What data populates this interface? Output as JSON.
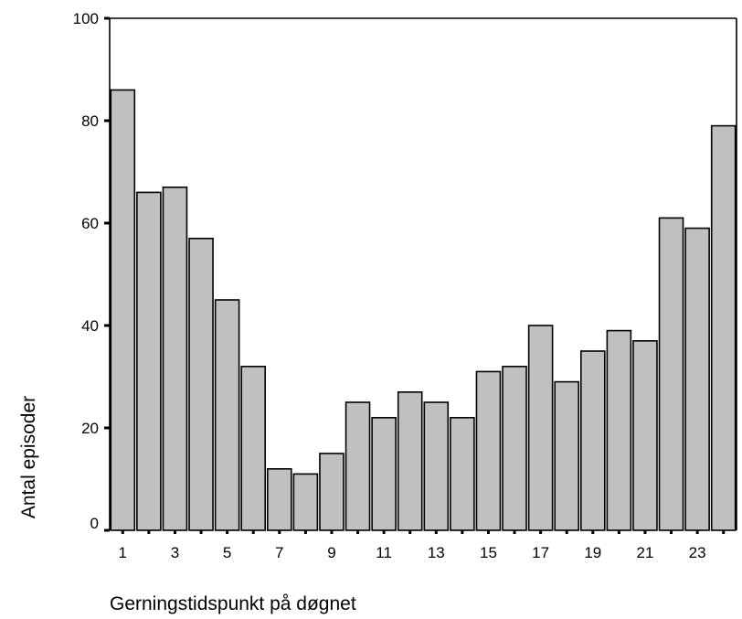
{
  "chart_data": {
    "type": "bar",
    "categories": [
      1,
      2,
      3,
      4,
      5,
      6,
      7,
      8,
      9,
      10,
      11,
      12,
      13,
      14,
      15,
      16,
      17,
      18,
      19,
      20,
      21,
      22,
      23,
      24
    ],
    "x_tick_labels": [
      "1",
      "3",
      "5",
      "7",
      "9",
      "11",
      "13",
      "15",
      "17",
      "19",
      "21",
      "23"
    ],
    "values": [
      86,
      66,
      67,
      57,
      45,
      32,
      12,
      11,
      15,
      25,
      22,
      27,
      25,
      22,
      31,
      32,
      40,
      29,
      35,
      39,
      37,
      61,
      59,
      79
    ],
    "xlabel": "Gerningstidspunkt på døgnet",
    "ylabel": "Antal episoder",
    "ylim": [
      0,
      100
    ],
    "y_ticks": [
      0,
      20,
      40,
      60,
      80,
      100
    ],
    "grid": false,
    "bar_color": "#c0c0c0"
  }
}
